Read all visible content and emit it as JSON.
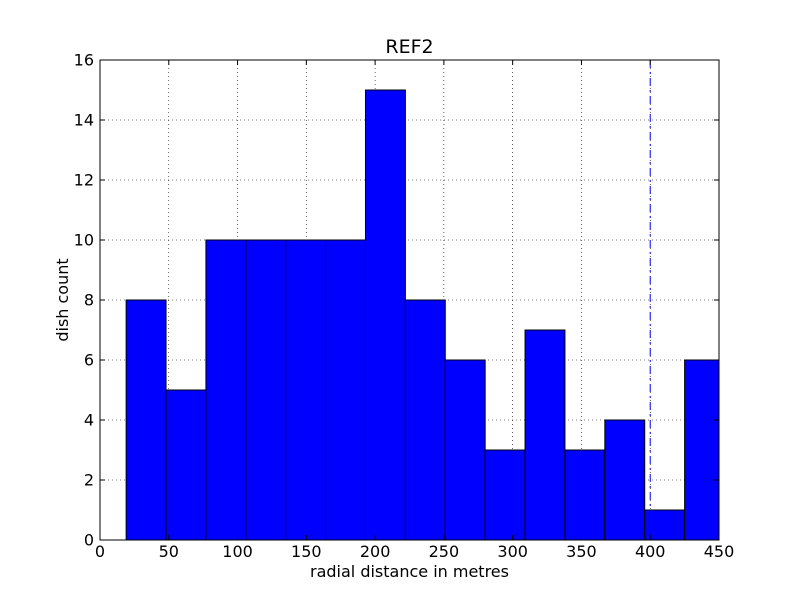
{
  "chart_data": {
    "type": "bar",
    "title": "REF2",
    "xlabel": "radial distance in metres",
    "ylabel": "dish count",
    "xlim": [
      0,
      450
    ],
    "ylim": [
      0,
      16
    ],
    "xticks": [
      0,
      50,
      100,
      150,
      200,
      250,
      300,
      350,
      400,
      450
    ],
    "yticks": [
      0,
      2,
      4,
      6,
      8,
      10,
      12,
      14,
      16
    ],
    "grid": true,
    "bar_color": "#0000ff",
    "edge_color": "#000000",
    "bin_edges": [
      19,
      48,
      77,
      106,
      135,
      164,
      193,
      222,
      251,
      280,
      309,
      338,
      367,
      396,
      425,
      450
    ],
    "values": [
      8,
      5,
      10,
      10,
      10,
      10,
      15,
      8,
      6,
      3,
      7,
      3,
      4,
      1,
      6
    ],
    "reference_line": {
      "x": 400,
      "color": "#0000ff",
      "style": "dashdot"
    }
  }
}
